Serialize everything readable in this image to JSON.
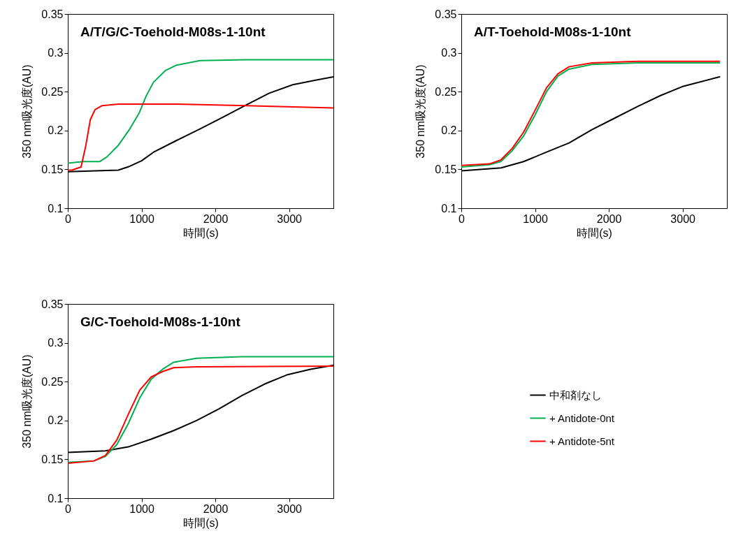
{
  "chart_data": [
    {
      "type": "line",
      "title": "A/T/G/C-Toehold-M08s-1-10nt",
      "xlabel": "時間(s)",
      "ylabel": "350 nm吸光度(AU)",
      "xlim": [
        0,
        3600
      ],
      "ylim": [
        0.1,
        0.35
      ],
      "xticks": [
        0,
        1000,
        2000,
        3000
      ],
      "yticks": [
        0.1,
        0.15,
        0.2,
        0.25,
        0.3,
        0.35
      ],
      "legend": false,
      "series": [
        {
          "color": "#000000",
          "x": [
            0,
            370,
            685,
            840,
            1000,
            1160,
            1470,
            1790,
            2100,
            2420,
            2730,
            3050,
            3370,
            3600
          ],
          "values": [
            0.147,
            0.148,
            0.149,
            0.154,
            0.161,
            0.172,
            0.187,
            0.202,
            0.217,
            0.233,
            0.248,
            0.259,
            0.265,
            0.269
          ]
        },
        {
          "color": "#00b050",
          "x": [
            0,
            210,
            430,
            530,
            685,
            840,
            970,
            1060,
            1160,
            1320,
            1470,
            1790,
            2420,
            3600
          ],
          "values": [
            0.158,
            0.16,
            0.16,
            0.166,
            0.181,
            0.202,
            0.223,
            0.244,
            0.262,
            0.277,
            0.284,
            0.29,
            0.291,
            0.291
          ]
        },
        {
          "color": "#ff0000",
          "x": [
            0,
            55,
            180,
            245,
            305,
            370,
            465,
            685,
            1470,
            2420,
            3600
          ],
          "values": [
            0.149,
            0.149,
            0.153,
            0.181,
            0.214,
            0.227,
            0.232,
            0.234,
            0.234,
            0.232,
            0.229
          ]
        }
      ]
    },
    {
      "type": "line",
      "title": "A/T-Toehold-M08s-1-10nt",
      "xlabel": "時間(s)",
      "ylabel": "350 nm吸光度(AU)",
      "xlim": [
        0,
        3600
      ],
      "ylim": [
        0.1,
        0.35
      ],
      "xticks": [
        0,
        1000,
        2000,
        3000
      ],
      "yticks": [
        0.1,
        0.15,
        0.2,
        0.25,
        0.3,
        0.35
      ],
      "legend": false,
      "series": [
        {
          "color": "#000000",
          "x": [
            0,
            540,
            845,
            1150,
            1460,
            1770,
            2080,
            2390,
            2700,
            3010,
            3500
          ],
          "values": [
            0.148,
            0.152,
            0.16,
            0.172,
            0.184,
            0.201,
            0.216,
            0.231,
            0.245,
            0.257,
            0.269
          ]
        },
        {
          "color": "#00b050",
          "x": [
            0,
            380,
            535,
            690,
            845,
            1000,
            1155,
            1310,
            1460,
            1770,
            2390,
            3500
          ],
          "values": [
            0.153,
            0.156,
            0.16,
            0.174,
            0.193,
            0.22,
            0.25,
            0.27,
            0.279,
            0.285,
            0.287,
            0.287
          ]
        },
        {
          "color": "#ff0000",
          "x": [
            0,
            380,
            535,
            690,
            845,
            1000,
            1155,
            1310,
            1460,
            1770,
            2390,
            3500
          ],
          "values": [
            0.155,
            0.157,
            0.162,
            0.177,
            0.198,
            0.226,
            0.255,
            0.273,
            0.282,
            0.287,
            0.289,
            0.289
          ]
        }
      ]
    },
    {
      "type": "line",
      "title": "G/C-Toehold-M08s-1-10nt",
      "xlabel": "時間(s)",
      "ylabel": "350 nm吸光度(AU)",
      "xlim": [
        0,
        3600
      ],
      "ylim": [
        0.1,
        0.35
      ],
      "xticks": [
        0,
        1000,
        2000,
        3000
      ],
      "yticks": [
        0.1,
        0.15,
        0.2,
        0.25,
        0.3,
        0.35
      ],
      "legend": "right",
      "series": [
        {
          "name": "中和剤なし",
          "color": "#000000",
          "x": [
            0,
            510,
            820,
            1130,
            1435,
            1745,
            2050,
            2360,
            2670,
            2980,
            3290,
            3600
          ],
          "values": [
            0.159,
            0.161,
            0.166,
            0.176,
            0.187,
            0.2,
            0.215,
            0.232,
            0.247,
            0.259,
            0.266,
            0.271
          ]
        },
        {
          "name": "+ Antidote-0nt",
          "color": "#00b050",
          "x": [
            0,
            355,
            510,
            665,
            820,
            975,
            1130,
            1285,
            1435,
            1745,
            2360,
            3600
          ],
          "values": [
            0.146,
            0.148,
            0.154,
            0.169,
            0.196,
            0.229,
            0.253,
            0.266,
            0.275,
            0.28,
            0.282,
            0.282
          ]
        },
        {
          "name": "+ Antidote-5nt",
          "color": "#ff0000",
          "x": [
            0,
            355,
            510,
            665,
            820,
            975,
            1130,
            1285,
            1435,
            1745,
            3600
          ],
          "values": [
            0.145,
            0.148,
            0.155,
            0.175,
            0.208,
            0.239,
            0.256,
            0.263,
            0.268,
            0.269,
            0.27
          ]
        }
      ]
    }
  ]
}
